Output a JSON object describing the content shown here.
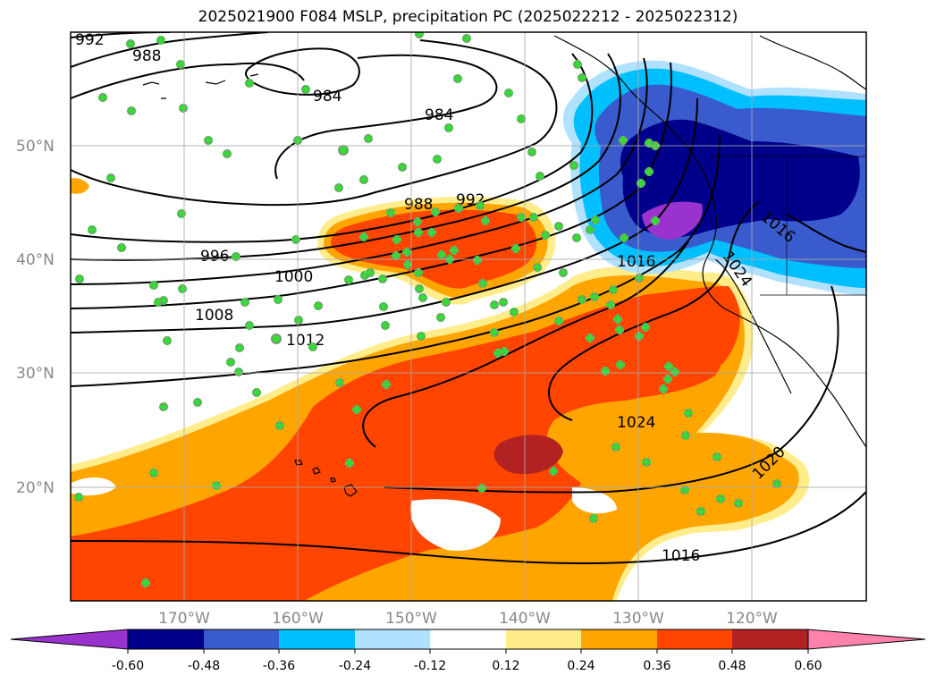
{
  "title": "2025021900 F084 MSLP, precipitation PC (2025022212 - 2025022312)",
  "map": {
    "lon_range": [
      -180,
      -110
    ],
    "lat_range": [
      10,
      60
    ],
    "lat_ticks": [
      "50°N",
      "40°N",
      "30°N",
      "20°N"
    ],
    "lon_ticks": [
      "170°W",
      "160°W",
      "150°W",
      "140°W",
      "130°W",
      "120°W"
    ],
    "grid": true
  },
  "mslp_contour_labels": [
    "992",
    "988",
    "984",
    "984",
    "988",
    "992",
    "996",
    "1000",
    "1008",
    "1012",
    "1016",
    "1020",
    "1024",
    "1024",
    "1016",
    "1016"
  ],
  "colorbar": {
    "ticks": [
      "-0.60",
      "-0.48",
      "-0.36",
      "-0.24",
      "-0.12",
      "0.12",
      "0.24",
      "0.36",
      "0.48",
      "0.60"
    ],
    "colors": [
      "#9a32cd",
      "#00008b",
      "#3a5bcd",
      "#00bfff",
      "#b0e2ff",
      "#ffffff",
      "#ffec8b",
      "#ffa500",
      "#ff4500",
      "#b22222",
      "#ff82ab"
    ]
  }
}
